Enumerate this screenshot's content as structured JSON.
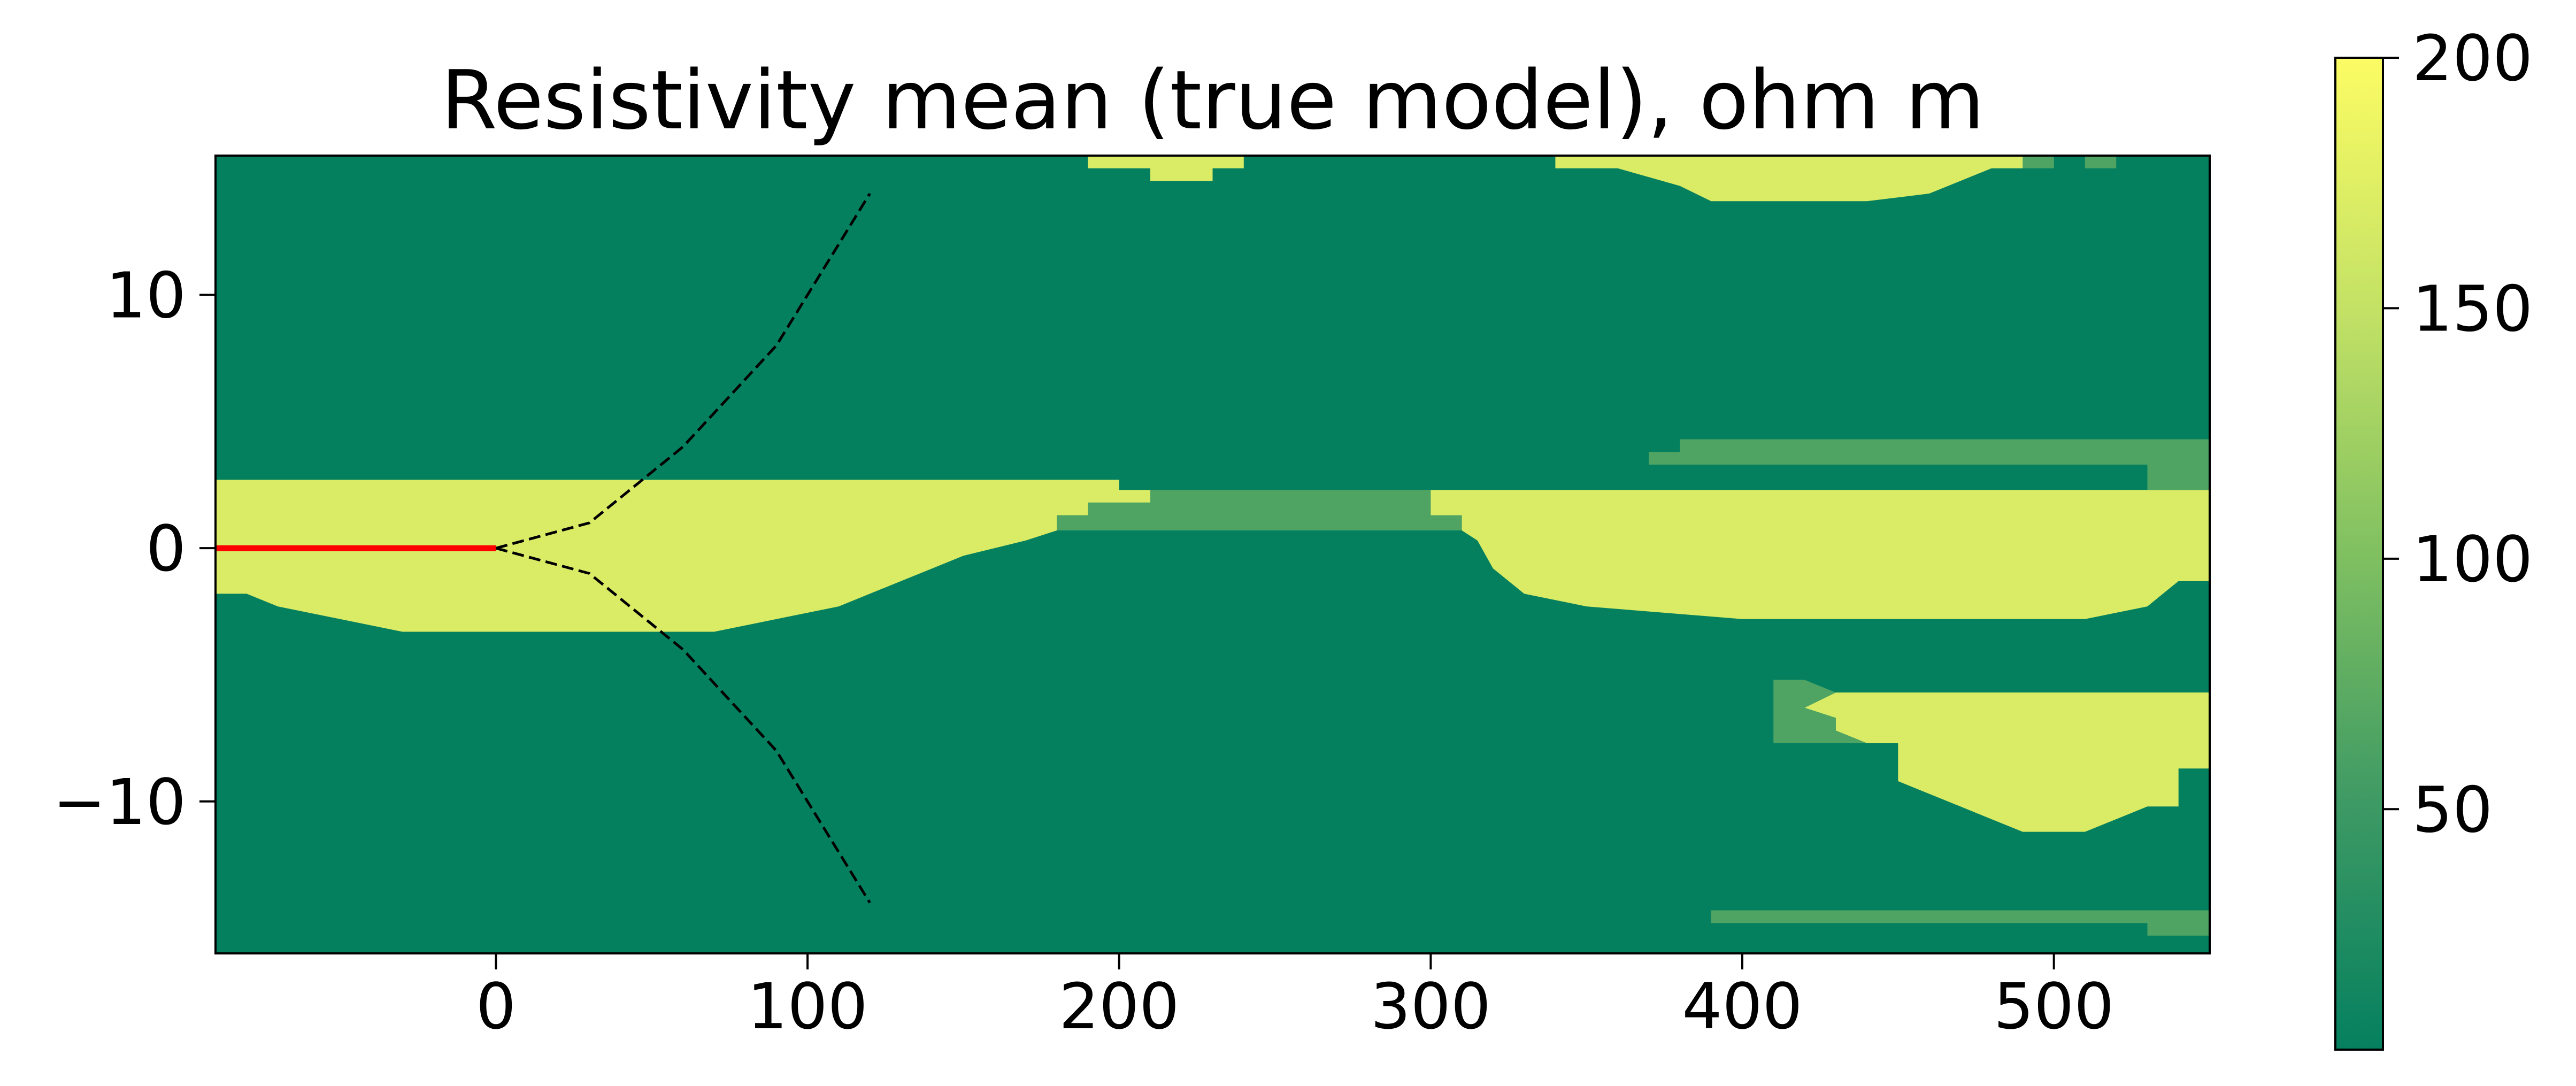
{
  "chart_data": {
    "type": "heatmap",
    "title": "Resistivity mean (true model), ohm m",
    "xlabel": "",
    "ylabel": "",
    "xlim": [
      -90,
      550
    ],
    "ylim": [
      -16,
      15.5
    ],
    "x_ticks": [
      0,
      100,
      200,
      300,
      400,
      500
    ],
    "x_tick_labels": [
      "0",
      "100",
      "200",
      "300",
      "400",
      "500"
    ],
    "y_ticks": [
      10,
      0,
      -10
    ],
    "y_tick_labels": [
      "10",
      "0",
      "−10"
    ],
    "colorbar": {
      "range": [
        2,
        200
      ],
      "ticks": [
        50,
        100,
        150,
        200
      ],
      "tick_labels": [
        "50",
        "100",
        "150",
        "200"
      ],
      "colors": [
        "#05805f",
        "#3e9a64",
        "#80c061",
        "#c4e265",
        "#fcfc64"
      ]
    },
    "background_value": 2,
    "regions": [
      {
        "name": "layer-upper-left",
        "value": 170,
        "polygon": [
          [
            -90,
            2.7
          ],
          [
            200,
            2.7
          ],
          [
            200,
            2.3
          ],
          [
            210,
            2.3
          ],
          [
            210,
            1.8
          ],
          [
            190,
            1.8
          ],
          [
            190,
            1.3
          ],
          [
            180,
            1.3
          ],
          [
            180,
            0.7
          ],
          [
            170,
            0.3
          ],
          [
            150,
            -0.3
          ],
          [
            140,
            -0.8
          ],
          [
            130,
            -1.3
          ],
          [
            120,
            -1.8
          ],
          [
            110,
            -2.3
          ],
          [
            90,
            -2.8
          ],
          [
            70,
            -3.3
          ],
          [
            -30,
            -3.3
          ],
          [
            -50,
            -2.8
          ],
          [
            -70,
            -2.3
          ],
          [
            -80,
            -1.8
          ],
          [
            -90,
            -1.8
          ]
        ]
      },
      {
        "name": "resistive-bridge",
        "value": 65,
        "polygon": [
          [
            210,
            2.3
          ],
          [
            300,
            2.3
          ],
          [
            300,
            1.3
          ],
          [
            310,
            1.3
          ],
          [
            310,
            0.7
          ],
          [
            180,
            0.7
          ],
          [
            180,
            1.3
          ],
          [
            190,
            1.3
          ],
          [
            190,
            1.8
          ],
          [
            210,
            1.8
          ]
        ]
      },
      {
        "name": "layer-upper-right",
        "value": 170,
        "polygon": [
          [
            300,
            2.3
          ],
          [
            550,
            2.3
          ],
          [
            550,
            -1.3
          ],
          [
            540,
            -1.3
          ],
          [
            530,
            -2.3
          ],
          [
            510,
            -2.8
          ],
          [
            400,
            -2.8
          ],
          [
            350,
            -2.3
          ],
          [
            330,
            -1.8
          ],
          [
            320,
            -0.8
          ],
          [
            315,
            0.3
          ],
          [
            310,
            0.7
          ],
          [
            310,
            1.3
          ],
          [
            300,
            1.3
          ]
        ]
      },
      {
        "name": "thin-layer-upper",
        "value": 65,
        "polygon": [
          [
            380,
            4.3
          ],
          [
            550,
            4.3
          ],
          [
            550,
            2.3
          ],
          [
            530,
            2.3
          ],
          [
            530,
            3.3
          ],
          [
            370,
            3.3
          ],
          [
            370,
            3.8
          ],
          [
            380,
            3.8
          ]
        ]
      },
      {
        "name": "top-lens-left",
        "value": 170,
        "polygon": [
          [
            190,
            15.5
          ],
          [
            240,
            15.5
          ],
          [
            240,
            15.0
          ],
          [
            230,
            15.0
          ],
          [
            230,
            14.5
          ],
          [
            210,
            14.5
          ],
          [
            210,
            15.0
          ],
          [
            190,
            15.0
          ]
        ]
      },
      {
        "name": "top-lens-right",
        "value": 170,
        "polygon": [
          [
            340,
            15.5
          ],
          [
            490,
            15.5
          ],
          [
            490,
            15.0
          ],
          [
            480,
            15.0
          ],
          [
            470,
            14.5
          ],
          [
            460,
            14.0
          ],
          [
            440,
            13.7
          ],
          [
            390,
            13.7
          ],
          [
            380,
            14.3
          ],
          [
            360,
            15.0
          ],
          [
            340,
            15.0
          ]
        ]
      },
      {
        "name": "top-patch-1",
        "value": 65,
        "polygon": [
          [
            490,
            15.5
          ],
          [
            500,
            15.5
          ],
          [
            500,
            15.0
          ],
          [
            490,
            15.0
          ]
        ]
      },
      {
        "name": "top-patch-2",
        "value": 65,
        "polygon": [
          [
            510,
            15.5
          ],
          [
            520,
            15.5
          ],
          [
            520,
            15.0
          ],
          [
            510,
            15.0
          ]
        ]
      },
      {
        "name": "lower-lens",
        "value": 170,
        "polygon": [
          [
            440,
            -5.7
          ],
          [
            550,
            -5.7
          ],
          [
            550,
            -8.7
          ],
          [
            540,
            -8.7
          ],
          [
            540,
            -10.2
          ],
          [
            530,
            -10.2
          ],
          [
            520,
            -10.7
          ],
          [
            510,
            -11.2
          ],
          [
            490,
            -11.2
          ],
          [
            480,
            -10.7
          ],
          [
            470,
            -10.2
          ],
          [
            460,
            -9.7
          ],
          [
            450,
            -9.2
          ],
          [
            450,
            -7.7
          ],
          [
            440,
            -7.7
          ],
          [
            430,
            -7.2
          ],
          [
            430,
            -6.7
          ],
          [
            420,
            -6.3
          ],
          [
            430,
            -5.7
          ],
          [
            440,
            -5.7
          ]
        ]
      },
      {
        "name": "lower-patch",
        "value": 65,
        "polygon": [
          [
            410,
            -5.2
          ],
          [
            420,
            -5.2
          ],
          [
            430,
            -5.7
          ],
          [
            420,
            -6.3
          ],
          [
            430,
            -6.7
          ],
          [
            430,
            -7.2
          ],
          [
            440,
            -7.7
          ],
          [
            410,
            -7.7
          ]
        ]
      },
      {
        "name": "thin-layer-lower",
        "value": 65,
        "polygon": [
          [
            390,
            -14.3
          ],
          [
            550,
            -14.3
          ],
          [
            550,
            -15.3
          ],
          [
            530,
            -15.3
          ],
          [
            530,
            -14.8
          ],
          [
            390,
            -14.8
          ]
        ]
      }
    ],
    "lines": [
      {
        "name": "red-line",
        "color": "#ff0000",
        "style": "solid",
        "x": [
          -90,
          0
        ],
        "y": [
          0,
          0
        ]
      },
      {
        "name": "upper-dashed-line",
        "color": "#000000",
        "style": "dashed",
        "x": [
          0,
          30,
          60,
          90,
          120
        ],
        "y": [
          0,
          1,
          4,
          8,
          14
        ]
      },
      {
        "name": "lower-dashed-line",
        "color": "#000000",
        "style": "dashed",
        "x": [
          0,
          30,
          60,
          90,
          120
        ],
        "y": [
          0,
          -1,
          -4,
          -8,
          -14
        ]
      }
    ]
  }
}
